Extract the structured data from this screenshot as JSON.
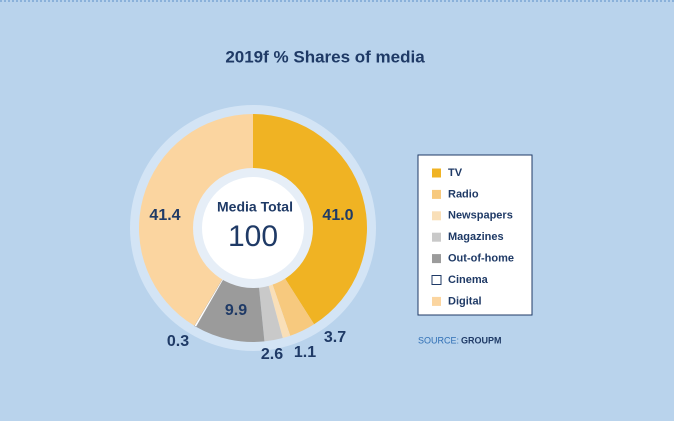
{
  "chart_data": {
    "type": "donut",
    "title": "2019f % Shares of media",
    "center_label": "Media Total",
    "center_value": 100,
    "categories": [
      "TV",
      "Radio",
      "Newspapers",
      "Magazines",
      "Out-of-home",
      "Cinema",
      "Digital"
    ],
    "values": [
      41.0,
      3.7,
      1.1,
      2.6,
      9.9,
      0.3,
      41.4
    ],
    "value_labels": [
      "41.0",
      "3.7",
      "1.1",
      "2.6",
      "9.9",
      "0.3",
      "41.4"
    ],
    "colors": [
      "#f0b323",
      "#f7c97e",
      "#f9dfb8",
      "#c9c9c9",
      "#9b9b9b",
      "#ffffff",
      "#fbd5a0"
    ],
    "source_label": "SOURCE:",
    "source": "GROUPM"
  }
}
